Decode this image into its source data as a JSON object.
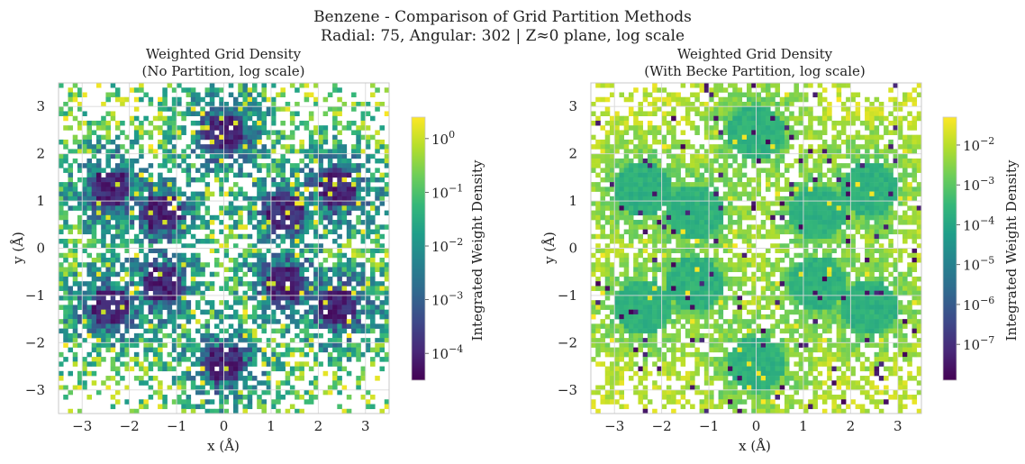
{
  "figure": {
    "title_line1": "Benzene - Comparison of Grid Partition Methods",
    "title_line2": "Radial: 75, Angular: 302 | Z≈0 plane, log scale"
  },
  "chart_data": [
    {
      "type": "heatmap",
      "title_line1": "Weighted Grid Density",
      "title_line2": "(No Partition, log scale)",
      "xlabel": "x (Å)",
      "ylabel": "y (Å)",
      "xlim": [
        -3.5,
        3.5
      ],
      "ylim": [
        -3.5,
        3.5
      ],
      "xticks": [
        "−3",
        "−2",
        "−1",
        "0",
        "1",
        "2",
        "3"
      ],
      "yticks": [
        "−3",
        "−2",
        "−1",
        "0",
        "1",
        "2",
        "3"
      ],
      "colormap": "viridis",
      "colorbar_label": "Integrated Weight Density",
      "colorbar_range_exp": [
        -4.5,
        0.4
      ],
      "colorbar_ticks": [
        {
          "exp": 0,
          "label": "10",
          "power": "0"
        },
        {
          "exp": -1,
          "label": "10",
          "power": "−1"
        },
        {
          "exp": -2,
          "label": "10",
          "power": "−2"
        },
        {
          "exp": -3,
          "label": "10",
          "power": "−3"
        },
        {
          "exp": -4,
          "label": "10",
          "power": "−4"
        }
      ],
      "grid_bins": 70,
      "atom_centers": [
        [
          -2.4,
          1.25
        ],
        [
          0.0,
          2.45
        ],
        [
          2.4,
          1.25
        ],
        [
          2.4,
          -1.25
        ],
        [
          0.0,
          -2.45
        ],
        [
          -2.4,
          -1.25
        ],
        [
          -1.3,
          0.75
        ],
        [
          1.3,
          0.75
        ],
        [
          1.3,
          -0.75
        ],
        [
          -1.3,
          -0.75
        ]
      ],
      "mode": "no-partition"
    },
    {
      "type": "heatmap",
      "title_line1": "Weighted Grid Density",
      "title_line2": "(With Becke Partition, log scale)",
      "xlabel": "x (Å)",
      "ylabel": "y (Å)",
      "xlim": [
        -3.5,
        3.5
      ],
      "ylim": [
        -3.5,
        3.5
      ],
      "xticks": [
        "−3",
        "−2",
        "−1",
        "0",
        "1",
        "2",
        "3"
      ],
      "yticks": [
        "−3",
        "−2",
        "−1",
        "0",
        "1",
        "2",
        "3"
      ],
      "colormap": "viridis",
      "colorbar_label": "Integrated Weight Density",
      "colorbar_range_exp": [
        -7.9,
        -1.3
      ],
      "colorbar_ticks": [
        {
          "exp": -2,
          "label": "10",
          "power": "−2"
        },
        {
          "exp": -3,
          "label": "10",
          "power": "−3"
        },
        {
          "exp": -4,
          "label": "10",
          "power": "−4"
        },
        {
          "exp": -5,
          "label": "10",
          "power": "−5"
        },
        {
          "exp": -6,
          "label": "10",
          "power": "−6"
        },
        {
          "exp": -7,
          "label": "10",
          "power": "−7"
        }
      ],
      "grid_bins": 70,
      "atom_centers": [
        [
          -2.4,
          1.25
        ],
        [
          0.0,
          2.45
        ],
        [
          2.4,
          1.25
        ],
        [
          2.4,
          -1.25
        ],
        [
          0.0,
          -2.45
        ],
        [
          -2.4,
          -1.25
        ],
        [
          -1.3,
          0.75
        ],
        [
          1.3,
          0.75
        ],
        [
          1.3,
          -0.75
        ],
        [
          -1.3,
          -0.75
        ]
      ],
      "mode": "becke"
    }
  ]
}
